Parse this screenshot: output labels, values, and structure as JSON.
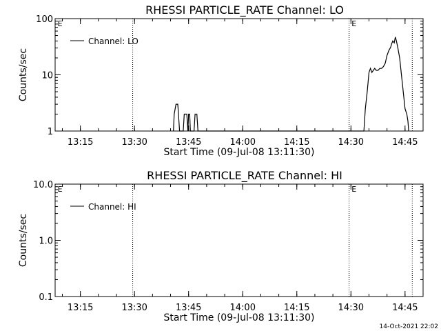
{
  "footer_timestamp": "14-Oct-2021 22:02",
  "chart_data": [
    {
      "type": "line",
      "title": "RHESSI PARTICLE_RATE Channel: LO",
      "xlabel": "Start Time (09-Jul-08 13:11:30)",
      "ylabel": "Counts/sec",
      "yscale": "log",
      "xlim": [
        "13:08",
        "14:50"
      ],
      "ylim": [
        1,
        100
      ],
      "x_ticks": [
        "13:15",
        "13:30",
        "13:45",
        "14:00",
        "14:15",
        "14:30",
        "14:45"
      ],
      "y_ticks": [
        {
          "value": 1,
          "label": "1"
        },
        {
          "value": 10,
          "label": "10"
        },
        {
          "value": 100,
          "label": "100"
        }
      ],
      "vlines": [
        "13:29.5",
        "14:29.5",
        "14:47"
      ],
      "markers": [
        {
          "x": "13:08.5",
          "label": "E"
        },
        {
          "x": "14:30",
          "label": "E"
        }
      ],
      "legend": {
        "position": "top-left",
        "entries": [
          "Channel: LO"
        ]
      },
      "grid": false,
      "series": [
        {
          "name": "Channel: LO",
          "x": [
            "13:40.8",
            "13:41",
            "13:41.5",
            "13:42",
            "13:42.2",
            "13:42.5",
            "13:43.5",
            "13:43.8",
            "13:44.5",
            "13:44.8",
            "13:45",
            "13:45.3",
            "13:45.5",
            "13:46.5",
            "13:46.8",
            "13:47.3",
            "13:47.6",
            "14:33.6",
            "14:34",
            "14:34.5",
            "14:35",
            "14:35.4",
            "14:35.8",
            "14:36.2",
            "14:36.6",
            "14:37",
            "14:37.5",
            "14:38",
            "14:38.5",
            "14:39",
            "14:39.5",
            "14:40",
            "14:40.5",
            "14:41",
            "14:41.3",
            "14:41.6",
            "14:42",
            "14:42.3",
            "14:42.6",
            "14:43",
            "14:43.5",
            "14:44",
            "14:44.5",
            "14:45",
            "14:45.5",
            "14:45.8",
            "14:46"
          ],
          "values": [
            1,
            2,
            3,
            3,
            2,
            1,
            1,
            2,
            2,
            1,
            2,
            2,
            1,
            1,
            2,
            2,
            1,
            1,
            2.5,
            5,
            11,
            13,
            11,
            12,
            13,
            12,
            12,
            13,
            13,
            14,
            16,
            22,
            27,
            31,
            36,
            40,
            37,
            47,
            40,
            30,
            20,
            10,
            5,
            2.5,
            2,
            1.5,
            1
          ]
        }
      ]
    },
    {
      "type": "line",
      "title": "RHESSI PARTICLE_RATE Channel: HI",
      "xlabel": "Start Time (09-Jul-08 13:11:30)",
      "ylabel": "Counts/sec",
      "yscale": "log",
      "xlim": [
        "13:08",
        "14:50"
      ],
      "ylim": [
        0.1,
        10
      ],
      "x_ticks": [
        "13:15",
        "13:30",
        "13:45",
        "14:00",
        "14:15",
        "14:30",
        "14:45"
      ],
      "y_ticks": [
        {
          "value": 0.1,
          "label": "0.1"
        },
        {
          "value": 1,
          "label": "1.0"
        },
        {
          "value": 10,
          "label": "10.0"
        }
      ],
      "vlines": [
        "13:29.5",
        "14:29.5",
        "14:47"
      ],
      "markers": [
        {
          "x": "13:08.5",
          "label": "E"
        },
        {
          "x": "14:30",
          "label": "E"
        }
      ],
      "legend": {
        "position": "top-left",
        "entries": [
          "Channel: HI"
        ]
      },
      "grid": false,
      "series": [
        {
          "name": "Channel: HI",
          "x": [],
          "values": []
        }
      ]
    }
  ]
}
